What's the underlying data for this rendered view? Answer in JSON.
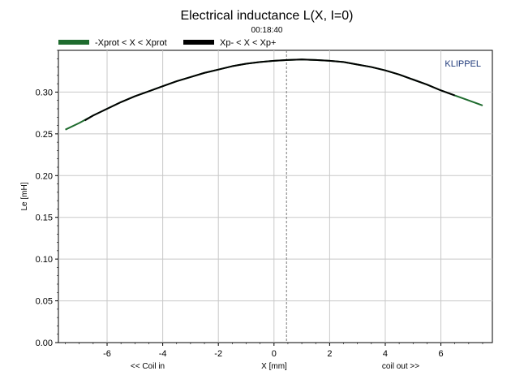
{
  "chart_data": {
    "type": "line",
    "title": "Electrical inductance L(X, I=0)",
    "subtitle": "00:18:40",
    "watermark": "KLIPPEL",
    "xlabel": "X [mm]",
    "ylabel": "Le [mH]",
    "x_annotation_left": "<< Coil in",
    "x_annotation_right": "coil out >>",
    "xlim": [
      -7.75,
      7.85
    ],
    "ylim": [
      0,
      0.35
    ],
    "x_ticks": [
      -6,
      -4,
      -2,
      0,
      2,
      4,
      6
    ],
    "y_ticks": [
      0.0,
      0.05,
      0.1,
      0.15,
      0.2,
      0.25,
      0.3
    ],
    "y_tick_labels": [
      "0.00",
      "0.05",
      "0.10",
      "0.15",
      "0.20",
      "0.25",
      "0.30"
    ],
    "grid": true,
    "legend_position": "top-left",
    "reference_line_x": 0.45,
    "series": [
      {
        "name": "-Xprot < X < Xprot",
        "color": "#1e6b2e",
        "x": [
          -7.5,
          -7.0,
          -6.5,
          -6.0,
          -5.5,
          -5.0,
          -4.5,
          -4.0,
          -3.5,
          -3.0,
          -2.5,
          -2.0,
          -1.5,
          -1.0,
          -0.5,
          0.0,
          0.5,
          1.0,
          1.5,
          2.0,
          2.5,
          3.0,
          3.5,
          4.0,
          4.5,
          5.0,
          5.5,
          6.0,
          6.5,
          7.0,
          7.5
        ],
        "values": [
          0.255,
          0.263,
          0.272,
          0.28,
          0.288,
          0.295,
          0.301,
          0.307,
          0.313,
          0.318,
          0.323,
          0.327,
          0.331,
          0.334,
          0.336,
          0.3375,
          0.3385,
          0.339,
          0.3385,
          0.3375,
          0.336,
          0.333,
          0.33,
          0.326,
          0.321,
          0.315,
          0.309,
          0.302,
          0.296,
          0.29,
          0.284
        ]
      },
      {
        "name": "Xp- < X < Xp+",
        "color": "#000000",
        "x": [
          -6.8,
          -6.5,
          -6.0,
          -5.5,
          -5.0,
          -4.5,
          -4.0,
          -3.5,
          -3.0,
          -2.5,
          -2.0,
          -1.5,
          -1.0,
          -0.5,
          0.0,
          0.5,
          1.0,
          1.5,
          2.0,
          2.5,
          3.0,
          3.5,
          4.0,
          4.5,
          5.0,
          5.5,
          6.0,
          6.5
        ],
        "values": [
          0.266,
          0.272,
          0.28,
          0.288,
          0.295,
          0.301,
          0.307,
          0.313,
          0.318,
          0.323,
          0.327,
          0.331,
          0.334,
          0.336,
          0.3375,
          0.3385,
          0.339,
          0.3385,
          0.3375,
          0.336,
          0.333,
          0.33,
          0.326,
          0.321,
          0.315,
          0.309,
          0.302,
          0.296
        ]
      }
    ]
  }
}
